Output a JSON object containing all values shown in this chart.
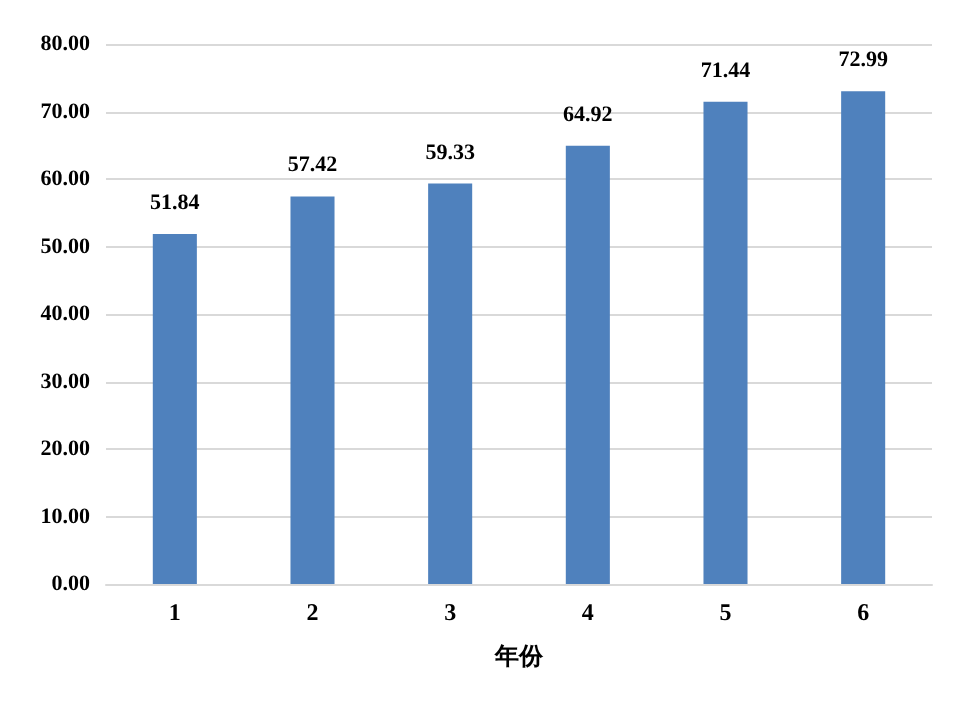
{
  "chart_data": {
    "type": "bar",
    "xlabel": "年份",
    "categories": [
      "1",
      "2",
      "3",
      "4",
      "5",
      "6"
    ],
    "values": [
      51.84,
      57.42,
      59.33,
      64.92,
      71.44,
      72.99
    ],
    "color": "#4f81bd",
    "data_labels": true,
    "ylim": [
      0,
      80
    ],
    "yticks": [
      {
        "value": 0,
        "label": "0.00"
      },
      {
        "value": 10,
        "label": "10.00"
      },
      {
        "value": 20,
        "label": "20.00"
      },
      {
        "value": 30,
        "label": "30.00"
      },
      {
        "value": 40,
        "label": "40.00"
      },
      {
        "value": 50,
        "label": "50.00"
      },
      {
        "value": 60,
        "label": "60.00"
      },
      {
        "value": 70,
        "label": "70.00"
      },
      {
        "value": 80,
        "label": "80.00"
      }
    ],
    "grid": "y"
  }
}
